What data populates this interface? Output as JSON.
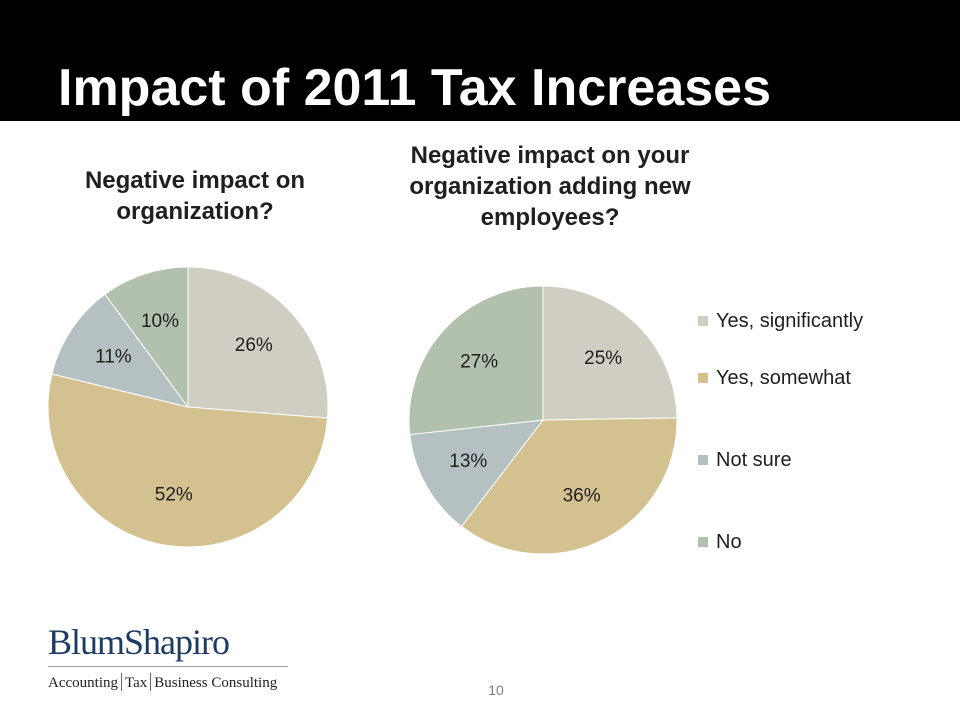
{
  "slide": {
    "title": "Impact of 2011 Tax Increases",
    "page_number": "10"
  },
  "logo": {
    "name": "BlumShapiro",
    "tagline_parts": [
      "Accounting",
      "Tax",
      "Business Consulting"
    ]
  },
  "colors": {
    "header_background": "#000000",
    "yes_significantly": "#d0cec3",
    "yes_somewhat": "#d3c18f",
    "not_sure": "#b5c0c3",
    "no": "#b1c1ad"
  },
  "chart_data": [
    {
      "type": "pie",
      "title": "Negative impact on organization?",
      "categories": [
        "Yes, significantly",
        "Yes, somewhat",
        "Not sure",
        "No"
      ],
      "values": [
        26,
        52,
        11,
        10
      ],
      "data_labels": [
        "26%",
        "52%",
        "11%",
        "10%"
      ]
    },
    {
      "type": "pie",
      "title": "Negative impact on your organization adding new employees?",
      "categories": [
        "Yes, significantly",
        "Yes, somewhat",
        "Not sure",
        "No"
      ],
      "values": [
        25,
        36,
        13,
        27
      ],
      "data_labels": [
        "25%",
        "36%",
        "13%",
        "27%"
      ],
      "legend": {
        "position": "right",
        "entries": [
          "Yes, significantly",
          "Yes, somewhat",
          "Not sure",
          "No"
        ]
      }
    }
  ]
}
